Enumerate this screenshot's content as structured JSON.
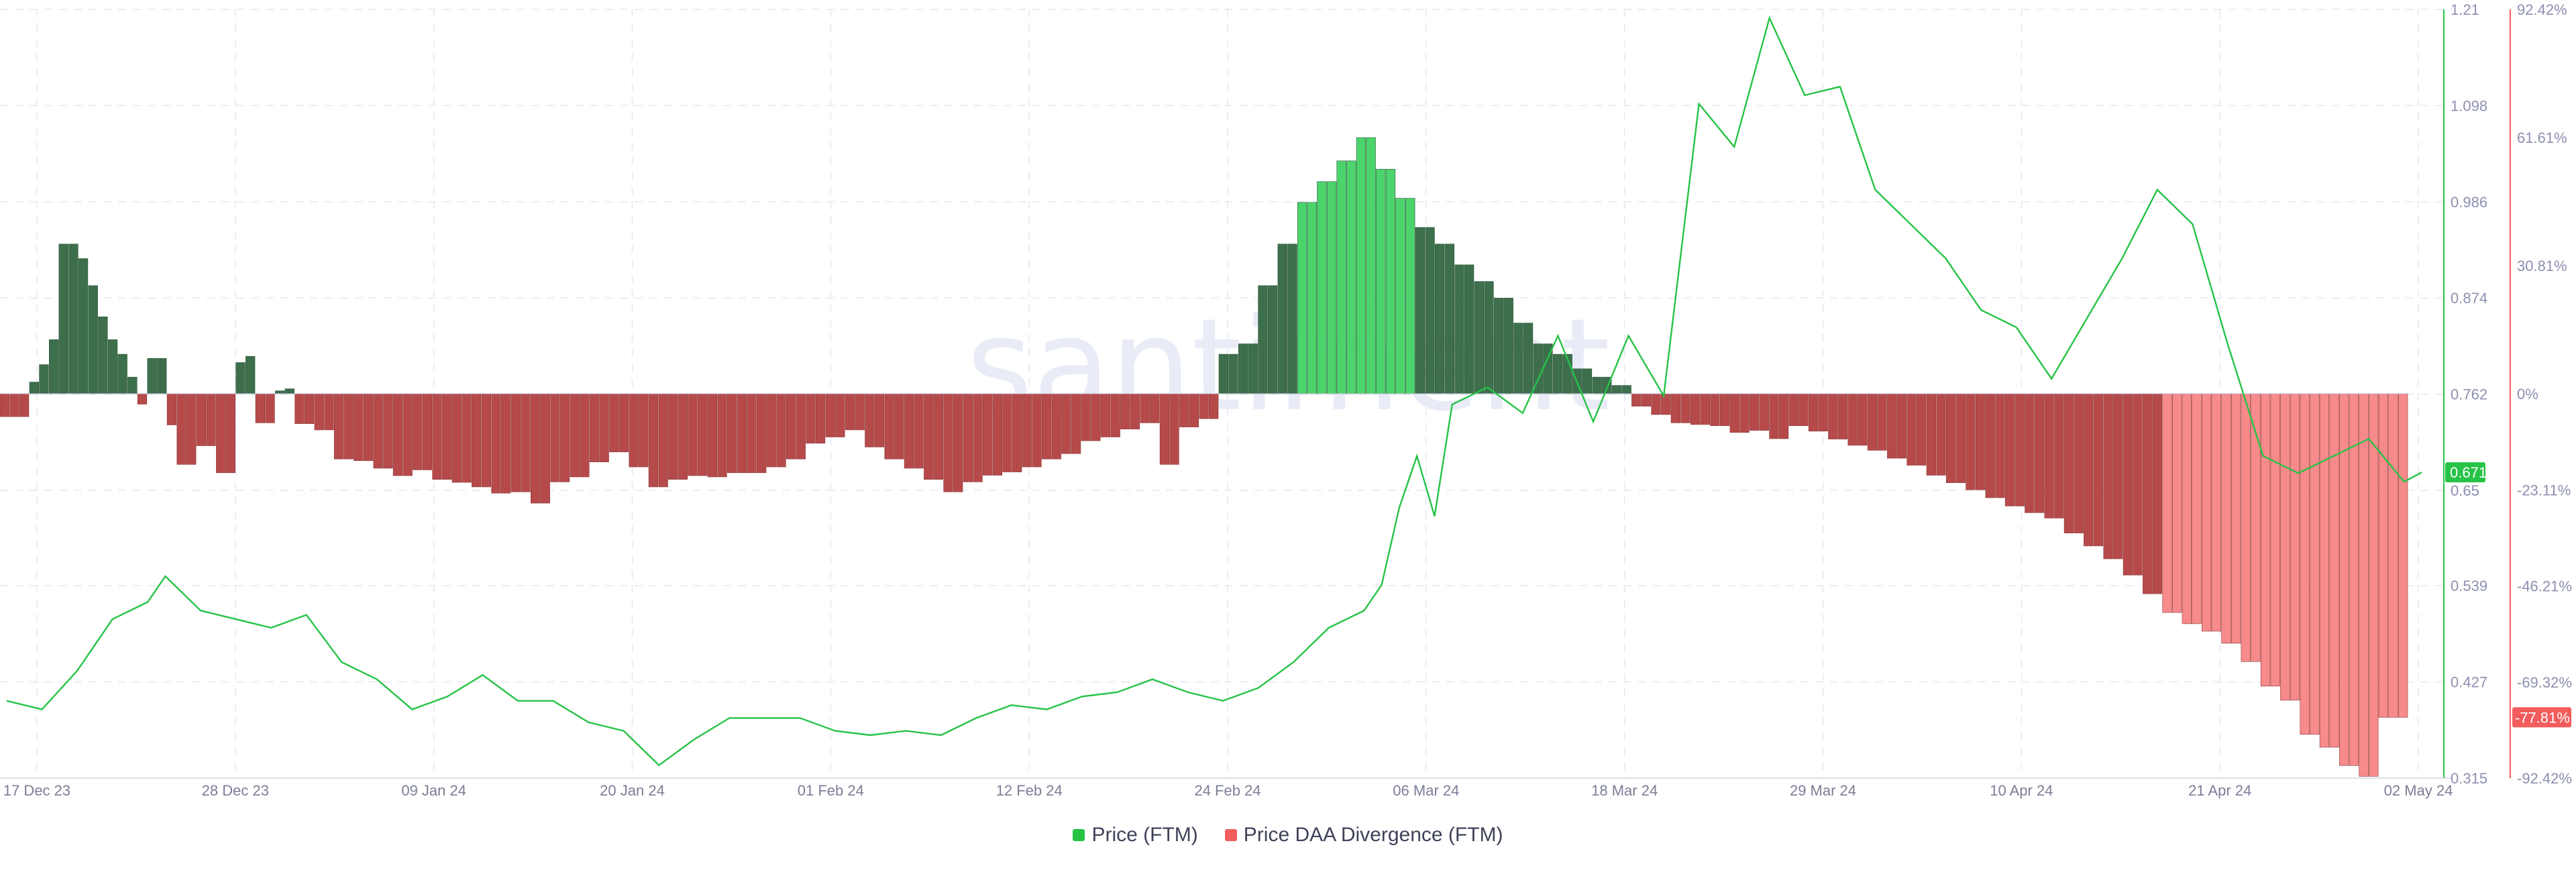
{
  "watermark": ".santiment",
  "legend": [
    {
      "label": "Price (FTM)",
      "color": "#26c346"
    },
    {
      "label": "Price DAA Divergence (FTM)",
      "color": "#f25c5c"
    }
  ],
  "colors": {
    "price": "#26c346",
    "pos_dark": "#3d6f4c",
    "pos_light": "#4bd46c",
    "neg_dark": "#b64a4a",
    "neg_light": "#f78a8a",
    "right_axis": "#f25c5c",
    "left_axis": "#26c346",
    "grid": "#e6e7ef"
  },
  "chart_data": {
    "type": "bar+line",
    "x_ticks": [
      "17 Dec 23",
      "28 Dec 23",
      "09 Jan 24",
      "20 Jan 24",
      "01 Feb 24",
      "12 Feb 24",
      "24 Feb 24",
      "06 Mar 24",
      "18 Mar 24",
      "29 Mar 24",
      "10 Apr 24",
      "21 Apr 24",
      "02 May 24"
    ],
    "x_range": [
      "2023-12-17",
      "2024-05-02"
    ],
    "price_axis": {
      "ticks": [
        "1.21",
        "1.098",
        "0.986",
        "0.874",
        "0.762",
        "0.65",
        "0.539",
        "0.427",
        "0.315"
      ],
      "range": [
        0.315,
        1.21
      ]
    },
    "divergence_axis": {
      "ticks": [
        "92.42%",
        "61.61%",
        "30.81%",
        "0%",
        "-23.11%",
        "-46.21%",
        "-69.32%",
        "-92.42%"
      ],
      "range": [
        -92.42,
        92.42
      ]
    },
    "current_price_label": "0.671",
    "current_divergence_label": "-77.81%",
    "series": [
      {
        "name": "Price (FTM)",
        "type": "line",
        "points": [
          [
            "2023-12-17",
            0.405
          ],
          [
            "2023-12-19",
            0.395
          ],
          [
            "2023-12-21",
            0.44
          ],
          [
            "2023-12-23",
            0.5
          ],
          [
            "2023-12-25",
            0.52
          ],
          [
            "2023-12-26",
            0.55
          ],
          [
            "2023-12-28",
            0.51
          ],
          [
            "2023-12-30",
            0.5
          ],
          [
            "2024-01-01",
            0.49
          ],
          [
            "2024-01-03",
            0.505
          ],
          [
            "2024-01-05",
            0.45
          ],
          [
            "2024-01-07",
            0.43
          ],
          [
            "2024-01-09",
            0.395
          ],
          [
            "2024-01-11",
            0.41
          ],
          [
            "2024-01-13",
            0.435
          ],
          [
            "2024-01-15",
            0.405
          ],
          [
            "2024-01-17",
            0.405
          ],
          [
            "2024-01-19",
            0.38
          ],
          [
            "2024-01-21",
            0.37
          ],
          [
            "2024-01-23",
            0.33
          ],
          [
            "2024-01-25",
            0.36
          ],
          [
            "2024-01-27",
            0.385
          ],
          [
            "2024-01-29",
            0.385
          ],
          [
            "2024-01-31",
            0.385
          ],
          [
            "2024-02-02",
            0.37
          ],
          [
            "2024-02-04",
            0.365
          ],
          [
            "2024-02-06",
            0.37
          ],
          [
            "2024-02-08",
            0.365
          ],
          [
            "2024-02-10",
            0.385
          ],
          [
            "2024-02-12",
            0.4
          ],
          [
            "2024-02-14",
            0.395
          ],
          [
            "2024-02-16",
            0.41
          ],
          [
            "2024-02-18",
            0.415
          ],
          [
            "2024-02-20",
            0.43
          ],
          [
            "2024-02-22",
            0.415
          ],
          [
            "2024-02-24",
            0.405
          ],
          [
            "2024-02-26",
            0.42
          ],
          [
            "2024-02-28",
            0.45
          ],
          [
            "2024-03-01",
            0.49
          ],
          [
            "2024-03-03",
            0.51
          ],
          [
            "2024-03-04",
            0.54
          ],
          [
            "2024-03-05",
            0.63
          ],
          [
            "2024-03-06",
            0.69
          ],
          [
            "2024-03-07",
            0.62
          ],
          [
            "2024-03-08",
            0.75
          ],
          [
            "2024-03-10",
            0.77
          ],
          [
            "2024-03-12",
            0.74
          ],
          [
            "2024-03-14",
            0.83
          ],
          [
            "2024-03-16",
            0.73
          ],
          [
            "2024-03-18",
            0.83
          ],
          [
            "2024-03-20",
            0.76
          ],
          [
            "2024-03-22",
            1.1
          ],
          [
            "2024-03-24",
            1.05
          ],
          [
            "2024-03-26",
            1.2
          ],
          [
            "2024-03-28",
            1.11
          ],
          [
            "2024-03-30",
            1.12
          ],
          [
            "2024-04-01",
            1.0
          ],
          [
            "2024-04-03",
            0.96
          ],
          [
            "2024-04-05",
            0.92
          ],
          [
            "2024-04-07",
            0.86
          ],
          [
            "2024-04-09",
            0.84
          ],
          [
            "2024-04-11",
            0.78
          ],
          [
            "2024-04-13",
            0.85
          ],
          [
            "2024-04-15",
            0.92
          ],
          [
            "2024-04-17",
            1.0
          ],
          [
            "2024-04-19",
            0.96
          ],
          [
            "2024-04-21",
            0.82
          ],
          [
            "2024-04-23",
            0.69
          ],
          [
            "2024-04-25",
            0.67
          ],
          [
            "2024-04-27",
            0.69
          ],
          [
            "2024-04-29",
            0.71
          ],
          [
            "2024-05-01",
            0.66
          ],
          [
            "2024-05-02",
            0.671
          ]
        ]
      },
      {
        "name": "Price DAA Divergence (FTM)",
        "type": "bar",
        "unit": "%",
        "values": [
          -5.5,
          -5.5,
          -5.5,
          2.8,
          7.0,
          13.0,
          36.0,
          36.0,
          32.5,
          26.0,
          18.5,
          13.0,
          9.5,
          4.0,
          -2.5,
          8.5,
          8.5,
          -7.5,
          -17.0,
          -17.0,
          -12.5,
          -12.5,
          -19.0,
          -19.0,
          7.5,
          9.0,
          -7.0,
          -7.0,
          0.7,
          1.2,
          -7.2,
          -7.2,
          -8.7,
          -8.7,
          -15.7,
          -15.7,
          -16.1,
          -16.1,
          -17.9,
          -17.9,
          -19.7,
          -19.7,
          -18.3,
          -18.3,
          -20.6,
          -20.6,
          -21.3,
          -21.3,
          -22.4,
          -22.4,
          -23.9,
          -23.9,
          -23.6,
          -23.6,
          -26.3,
          -26.3,
          -21.2,
          -21.2,
          -20.0,
          -20.0,
          -16.4,
          -16.4,
          -14.0,
          -14.0,
          -17.6,
          -17.6,
          -22.4,
          -22.4,
          -20.6,
          -20.6,
          -19.7,
          -19.7,
          -20.0,
          -20.0,
          -19.0,
          -19.0,
          -19.0,
          -19.0,
          -17.6,
          -17.6,
          -15.7,
          -15.7,
          -11.9,
          -11.9,
          -10.4,
          -10.4,
          -8.7,
          -8.7,
          -12.8,
          -12.8,
          -15.7,
          -15.7,
          -17.9,
          -17.9,
          -20.6,
          -20.6,
          -23.6,
          -23.6,
          -21.2,
          -21.2,
          -19.6,
          -19.6,
          -18.8,
          -18.8,
          -17.6,
          -17.6,
          -15.7,
          -15.7,
          -14.4,
          -14.4,
          -11.3,
          -11.3,
          -10.4,
          -10.4,
          -8.5,
          -8.5,
          -7.0,
          -7.0,
          -17.0,
          -17.0,
          -8.0,
          -8.0,
          -6.0,
          -6.0,
          9.5,
          9.5,
          12.0,
          12.0,
          26.0,
          26.0,
          36.0,
          36.0,
          46.0,
          46.0,
          51.0,
          51.0,
          56.0,
          56.0,
          61.6,
          61.6,
          54.0,
          54.0,
          47.0,
          47.0,
          40.0,
          40.0,
          36.0,
          36.0,
          31.0,
          31.0,
          27.0,
          27.0,
          23.0,
          23.0,
          17.0,
          17.0,
          12.0,
          12.0,
          9.5,
          9.5,
          6.0,
          6.0,
          4.0,
          4.0,
          2.0,
          2.0,
          -3.0,
          -3.0,
          -5.0,
          -5.0,
          -7.0,
          -7.0,
          -7.4,
          -7.4,
          -7.7,
          -7.7,
          -9.3,
          -9.3,
          -8.8,
          -8.8,
          -10.8,
          -10.8,
          -7.7,
          -7.7,
          -9.0,
          -9.0,
          -10.9,
          -10.9,
          -12.4,
          -12.4,
          -13.6,
          -13.6,
          -15.5,
          -15.5,
          -17.2,
          -17.2,
          -19.6,
          -19.6,
          -21.4,
          -21.4,
          -23.1,
          -23.1,
          -25.0,
          -25.0,
          -27.0,
          -27.0,
          -28.6,
          -28.6,
          -29.9,
          -29.9,
          -33.5,
          -33.5,
          -36.6,
          -36.6,
          -39.7,
          -39.7,
          -43.6,
          -43.6,
          -48.1,
          -48.1,
          -52.6,
          -52.6,
          -55.3,
          -55.3,
          -57.1,
          -57.1,
          -60.0,
          -60.0,
          -64.4,
          -64.4,
          -70.3,
          -70.3,
          -73.7,
          -73.7,
          -81.9,
          -81.9,
          -85.0,
          -85.0,
          -89.4,
          -89.4,
          -92.0,
          -92.0,
          -77.8,
          -77.8,
          -77.8
        ],
        "note_positive_bars": "values above 0% are drawn green, below 0% red"
      }
    ]
  }
}
